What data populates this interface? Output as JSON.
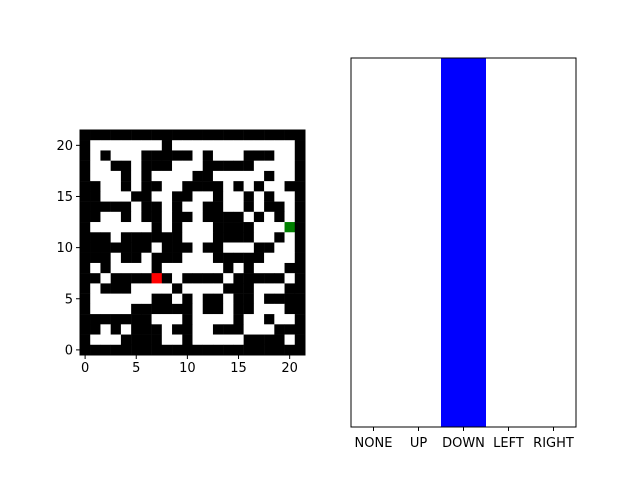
{
  "maze": {
    "grid_size": 22,
    "grid": [
      "1111111111111111111111",
      "1000000010000000000001",
      "1010001111101000111001",
      "1001101110001111100001",
      "1000101000011000001001",
      "1100101100111101010011",
      "1100011001100100101001",
      "1111101101001100101101",
      "1100101101101111010101",
      "1000000101000111100001",
      "1110111111000111100101",
      "1111111011101100011001",
      "1110110111000111110001",
      "1010000100000010100011",
      "1101111110111101111101",
      "1011100001000011100011",
      "1000000110101101101111",
      "1000011111101101100011",
      "1111111000100001001001",
      "1101011101100111000111",
      "1000111100100000111101",
      "1111111111111111111111"
    ],
    "agent": {
      "row": 14,
      "col": 7,
      "color": "#ff0000"
    },
    "goal": {
      "row": 9,
      "col": 20,
      "color": "#008000"
    },
    "wall_color": "#000000",
    "free_color": "#ffffff",
    "x_ticks": [
      "0",
      "5",
      "10",
      "15",
      "20"
    ],
    "y_ticks": [
      "20",
      "15",
      "10",
      "5",
      "0"
    ]
  },
  "actions": {
    "labels": [
      "NONE",
      "UP",
      "DOWN",
      "LEFT",
      "RIGHT"
    ],
    "selected_index": 2,
    "highlight_color": "#0000ff"
  }
}
